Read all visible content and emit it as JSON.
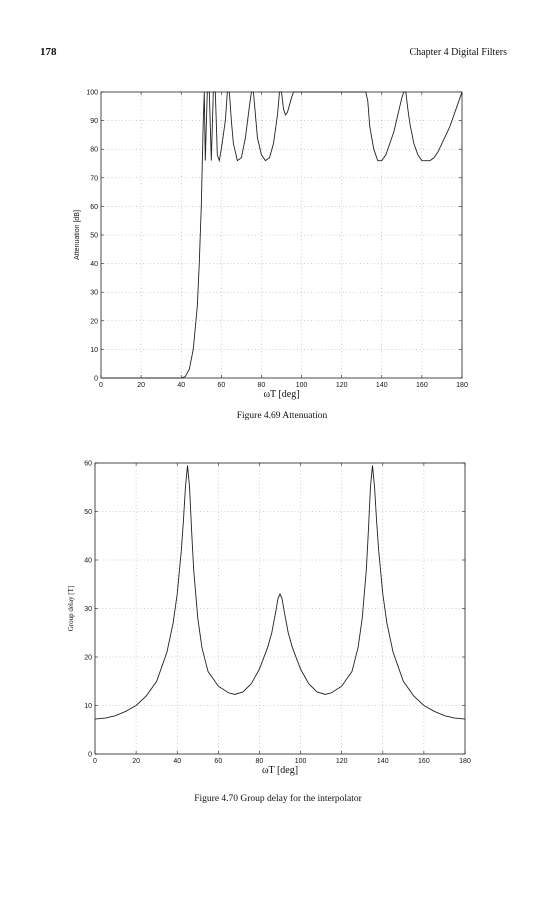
{
  "header": {
    "page_number": "178",
    "chapter": "Chapter 4   Digital Filters"
  },
  "chart_data": [
    {
      "type": "line",
      "caption": "Figure 4.69   Attenuation",
      "xlabel": "ωT  [deg]",
      "ylabel": "Attenuation [dB]",
      "x": [
        0,
        10,
        20,
        30,
        40,
        42,
        44,
        46,
        48,
        49,
        50,
        51,
        51.5,
        52,
        53,
        54,
        55,
        56,
        57,
        58,
        59,
        60,
        62,
        63,
        64,
        65,
        66,
        68,
        70,
        72,
        74,
        75,
        76,
        77,
        78,
        80,
        82,
        84,
        86,
        88,
        89,
        90,
        91,
        92,
        93,
        95,
        96,
        100,
        110,
        120,
        130,
        132,
        133,
        134,
        136,
        138,
        140,
        142,
        144,
        146,
        148,
        150,
        151,
        152,
        153,
        154,
        156,
        158,
        160,
        162,
        164,
        166,
        168,
        170,
        172,
        174,
        176,
        178,
        180
      ],
      "values": [
        0,
        0,
        0,
        0,
        0,
        0.5,
        3,
        10,
        25,
        40,
        60,
        90,
        100,
        76,
        100,
        100,
        76,
        100,
        100,
        78,
        76,
        80,
        90,
        100,
        100,
        90,
        82,
        76,
        77,
        84,
        95,
        100,
        100,
        92,
        84,
        78,
        76,
        77,
        82,
        92,
        100,
        100,
        94,
        92,
        93,
        98,
        100,
        100,
        100,
        100,
        100,
        100,
        97,
        88,
        80,
        76,
        76,
        78,
        82,
        86,
        92,
        98,
        100,
        100,
        94,
        89,
        82,
        78,
        76,
        76,
        76,
        77,
        79,
        82,
        85,
        88,
        92,
        96,
        100
      ],
      "color": "#222222",
      "xlim": [
        0,
        180
      ],
      "ylim": [
        0,
        100
      ],
      "xticks": [
        0,
        20,
        40,
        60,
        80,
        100,
        120,
        140,
        160,
        180
      ],
      "yticks": [
        0,
        10,
        20,
        30,
        40,
        50,
        60,
        70,
        80,
        90,
        100
      ],
      "grid": true
    },
    {
      "type": "line",
      "caption": "Figure 4.70   Group delay for the interpolator",
      "xlabel": "ωT  [deg]",
      "ylabel": "Group delay [T]",
      "x": [
        0,
        5,
        10,
        15,
        20,
        25,
        30,
        35,
        38,
        40,
        42,
        43,
        44,
        45,
        46,
        47,
        48,
        50,
        52,
        55,
        60,
        65,
        68,
        72,
        76,
        80,
        84,
        86,
        88,
        89,
        90,
        91,
        92,
        94,
        96,
        100,
        104,
        108,
        112,
        115,
        120,
        125,
        128,
        130,
        132,
        133,
        134,
        135,
        136,
        137,
        138,
        140,
        142,
        145,
        150,
        155,
        160,
        165,
        170,
        175,
        180
      ],
      "values": [
        7.2,
        7.4,
        7.9,
        8.8,
        10,
        12,
        15,
        21,
        27,
        33,
        42,
        48,
        55,
        59.5,
        55,
        46,
        38,
        28,
        22,
        17,
        14,
        12.6,
        12.3,
        12.8,
        14.5,
        17.5,
        22,
        25,
        29.5,
        32,
        33,
        32,
        29.5,
        25,
        22,
        17.5,
        14.5,
        12.8,
        12.3,
        12.6,
        14,
        17,
        22,
        28,
        38,
        46,
        55,
        59.5,
        55,
        48,
        42,
        33,
        27,
        21,
        15,
        12,
        10,
        8.8,
        7.9,
        7.4,
        7.2
      ],
      "color": "#222222",
      "xlim": [
        0,
        180
      ],
      "ylim": [
        0,
        60
      ],
      "xticks": [
        0,
        20,
        40,
        60,
        80,
        100,
        120,
        140,
        160,
        180
      ],
      "yticks": [
        0,
        10,
        20,
        30,
        40,
        50,
        60
      ],
      "grid": true
    }
  ]
}
